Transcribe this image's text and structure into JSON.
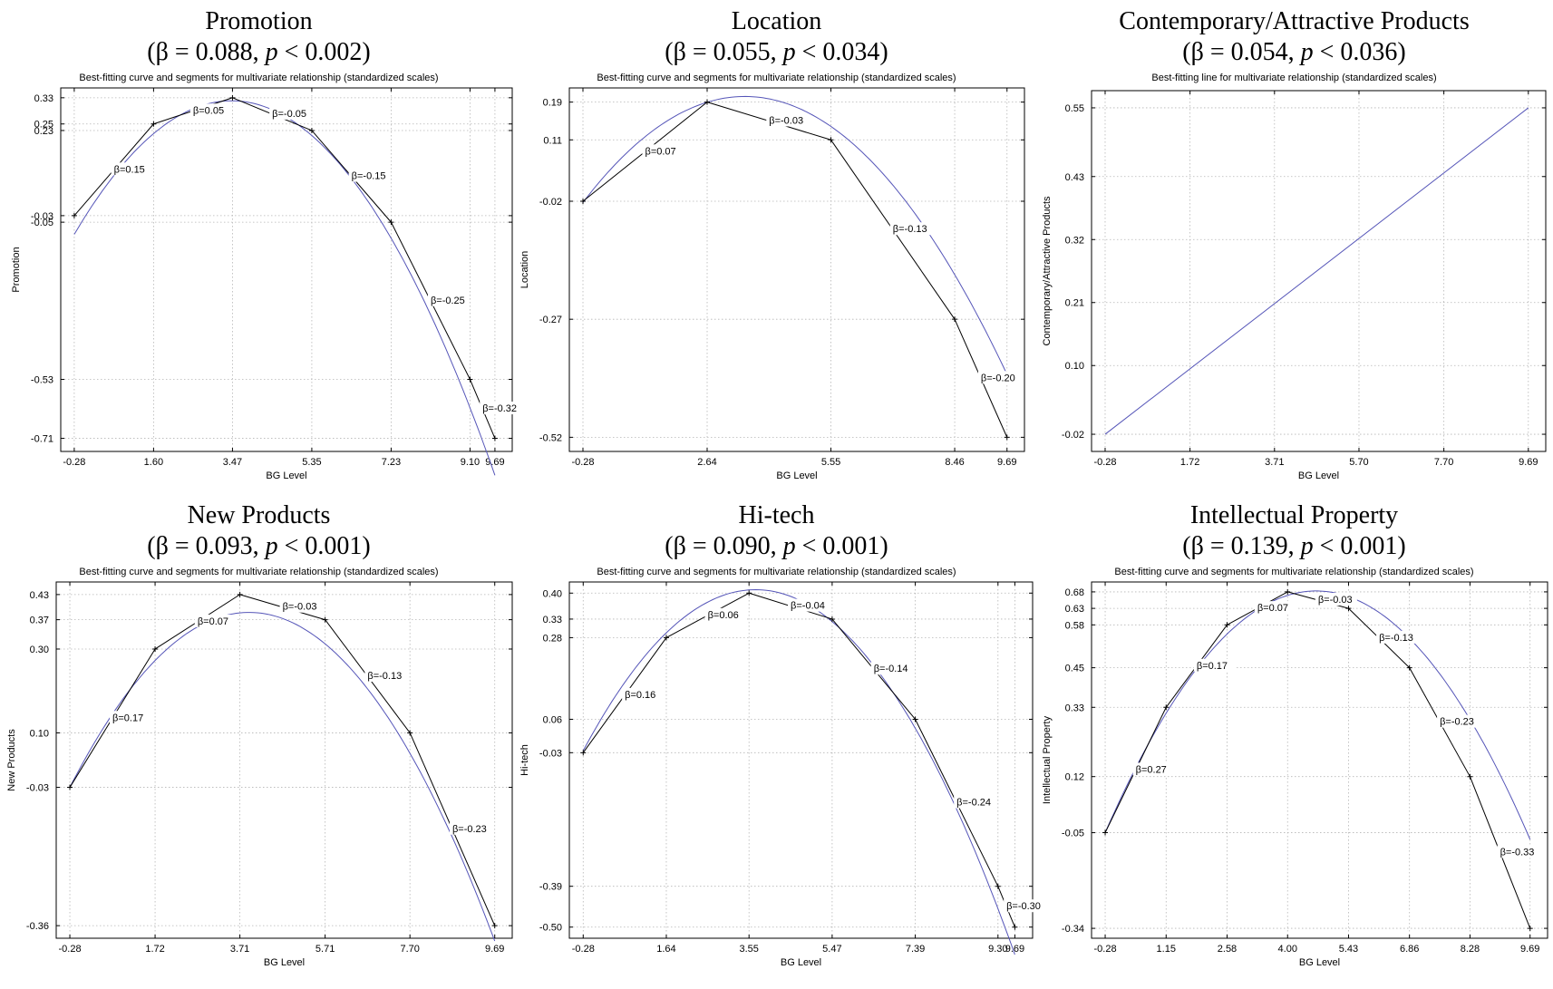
{
  "chart_data": [
    {
      "type": "line",
      "name": "Promotion",
      "title": "Promotion",
      "stat_beta": "β = 0.088, ",
      "stat_p": "p",
      "stat_rest": " < 0.002)",
      "subtitle": "Best-fitting curve and segments for multivariate relationship (standardized scales)",
      "xlabel": "BG Level",
      "ylabel": "Promotion",
      "xlim": [
        -0.6,
        10.1
      ],
      "ylim": [
        -0.75,
        0.36
      ],
      "xticks": [
        -0.28,
        1.6,
        3.47,
        5.35,
        7.23,
        9.1,
        9.69
      ],
      "xtick_labels": [
        "-0.28",
        "1.60",
        "3.47",
        "5.35",
        "7.23",
        "9.10",
        "9.69"
      ],
      "yticks": [
        0.33,
        0.25,
        0.23,
        -0.03,
        -0.05,
        -0.53,
        -0.71
      ],
      "ytick_labels": [
        "0.33",
        "0.25",
        "0.23",
        "-0.03",
        "-0.05",
        "-0.53",
        "-0.71"
      ],
      "curve": {
        "type": "quadratic",
        "a": -0.02935,
        "b": 0.2024,
        "c": -0.0282,
        "x_from": -0.28,
        "x_to": 9.69
      },
      "segments": {
        "x": [
          -0.28,
          1.6,
          3.47,
          5.35,
          7.23,
          9.1,
          9.69
        ],
        "y": [
          -0.03,
          0.25,
          0.33,
          0.23,
          -0.05,
          -0.53,
          -0.71
        ]
      },
      "segment_labels": [
        "β=0.15",
        "β=0.05",
        "β=-0.05",
        "β=-0.15",
        "β=-0.25",
        "β=-0.32"
      ]
    },
    {
      "type": "line",
      "name": "Location",
      "title": "Location",
      "stat_beta": "β = 0.055, ",
      "stat_p": "p",
      "stat_rest": " < 0.034)",
      "subtitle": "Best-fitting curve and segments for multivariate relationship (standardized scales)",
      "xlabel": "BG Level",
      "ylabel": "Location",
      "xlim": [
        -0.6,
        10.1
      ],
      "ylim": [
        -0.55,
        0.22
      ],
      "xticks": [
        -0.28,
        2.64,
        5.55,
        8.46,
        9.69
      ],
      "xtick_labels": [
        "-0.28",
        "2.64",
        "5.55",
        "8.46",
        "9.69"
      ],
      "yticks": [
        0.19,
        0.11,
        -0.02,
        -0.27,
        -0.52
      ],
      "ytick_labels": [
        "0.19",
        "0.11",
        "-0.02",
        "-0.27",
        "-0.52"
      ],
      "curve": {
        "type": "quadratic",
        "a": -0.0155,
        "b": 0.1093,
        "c": 0.0092,
        "x_from": -0.28,
        "x_to": 9.69
      },
      "segments": {
        "x": [
          -0.28,
          2.64,
          5.55,
          8.46,
          9.69
        ],
        "y": [
          -0.02,
          0.19,
          0.11,
          -0.27,
          -0.52
        ]
      },
      "segment_labels": [
        "β=0.07",
        "β=-0.03",
        "β=-0.13",
        "β=-0.20"
      ]
    },
    {
      "type": "line",
      "name": "Contemporary/Attractive Products",
      "title": "Contemporary/Attractive Products",
      "stat_beta": "β = 0.054, ",
      "stat_p": "p",
      "stat_rest": " < 0.036)",
      "subtitle": "Best-fitting line for multivariate relationship (standardized scales)",
      "xlabel": "BG Level",
      "ylabel": "Contemporary/Attractive Products",
      "xlim": [
        -0.6,
        10.1
      ],
      "ylim": [
        -0.05,
        0.58
      ],
      "xticks": [
        -0.28,
        1.72,
        3.71,
        5.7,
        7.7,
        9.69
      ],
      "xtick_labels": [
        "-0.28",
        "1.72",
        "3.71",
        "5.70",
        "7.70",
        "9.69"
      ],
      "yticks": [
        0.55,
        0.43,
        0.32,
        0.21,
        0.1,
        -0.02
      ],
      "ytick_labels": [
        "0.55",
        "0.43",
        "0.32",
        "0.21",
        "0.10",
        "-0.02"
      ],
      "line": {
        "x": [
          -0.28,
          9.69
        ],
        "y": [
          -0.02,
          0.55
        ]
      }
    },
    {
      "type": "line",
      "name": "New Products",
      "title": "New Products",
      "stat_beta": "β = 0.093, ",
      "stat_p": "p",
      "stat_rest": " < 0.001)",
      "subtitle": "Best-fitting curve and segments for multivariate relationship (standardized scales)",
      "xlabel": "BG Level",
      "ylabel": "New Products",
      "xlim": [
        -0.6,
        10.1
      ],
      "ylim": [
        -0.39,
        0.46
      ],
      "xticks": [
        -0.28,
        1.72,
        3.71,
        5.71,
        7.7,
        9.69
      ],
      "xtick_labels": [
        "-0.28",
        "1.72",
        "3.71",
        "5.71",
        "7.70",
        "9.69"
      ],
      "yticks": [
        0.43,
        0.37,
        0.3,
        0.1,
        -0.03,
        -0.36
      ],
      "ytick_labels": [
        "0.43",
        "0.37",
        "0.30",
        "0.10",
        "-0.03",
        "-0.36"
      ],
      "curve": {
        "type": "quadratic",
        "a": -0.0236,
        "b": 0.1853,
        "c": 0.0237,
        "x_from": -0.28,
        "x_to": 9.69
      },
      "segments": {
        "x": [
          -0.28,
          1.72,
          3.71,
          5.71,
          7.7,
          9.69
        ],
        "y": [
          -0.03,
          0.3,
          0.43,
          0.37,
          0.1,
          -0.36
        ]
      },
      "segment_labels": [
        "β=0.17",
        "β=0.07",
        "β=-0.03",
        "β=-0.13",
        "β=-0.23"
      ]
    },
    {
      "type": "line",
      "name": "Hi-tech",
      "title": "Hi-tech",
      "stat_beta": "β = 0.090, ",
      "stat_p": "p",
      "stat_rest": " < 0.001)",
      "subtitle": "Best-fitting curve and segments for multivariate relationship (standardized scales)",
      "xlabel": "BG Level",
      "ylabel": "Hi-tech",
      "xlim": [
        -0.6,
        10.1
      ],
      "ylim": [
        -0.53,
        0.43
      ],
      "xticks": [
        -0.28,
        1.64,
        3.55,
        5.47,
        7.39,
        9.3,
        9.69
      ],
      "xtick_labels": [
        "-0.28",
        "1.64",
        "3.55",
        "5.47",
        "7.39",
        "9.30",
        "9.69"
      ],
      "yticks": [
        0.4,
        0.33,
        0.28,
        0.06,
        -0.03,
        -0.39,
        -0.5
      ],
      "ytick_labels": [
        "0.40",
        "0.33",
        "0.28",
        "0.06",
        "-0.03",
        "-0.39",
        "-0.50"
      ],
      "curve": {
        "type": "quadratic",
        "a": -0.0274,
        "b": 0.2027,
        "c": 0.0343,
        "x_from": -0.28,
        "x_to": 9.69
      },
      "segments": {
        "x": [
          -0.28,
          1.64,
          3.55,
          5.47,
          7.39,
          9.3,
          9.69
        ],
        "y": [
          -0.03,
          0.28,
          0.4,
          0.33,
          0.06,
          -0.39,
          -0.5
        ]
      },
      "segment_labels": [
        "β=0.16",
        "β=0.06",
        "β=-0.04",
        "β=-0.14",
        "β=-0.24",
        "β=-0.30"
      ]
    },
    {
      "type": "line",
      "name": "Intellectual Property",
      "title": "Intellectual Property",
      "stat_beta": "β = 0.139, ",
      "stat_p": "p",
      "stat_rest": " < 0.001)",
      "subtitle": "Best-fitting curve and segments for multivariate relationship (standardized scales)",
      "xlabel": "BG Level",
      "ylabel": "Intellectual Property",
      "xlim": [
        -0.6,
        10.1
      ],
      "ylim": [
        -0.37,
        0.71
      ],
      "xticks": [
        -0.28,
        1.15,
        2.58,
        4.0,
        5.43,
        6.86,
        8.28,
        9.69
      ],
      "xtick_labels": [
        "-0.28",
        "1.15",
        "2.58",
        "4.00",
        "5.43",
        "6.86",
        "8.28",
        "9.69"
      ],
      "yticks": [
        0.68,
        0.63,
        0.58,
        0.45,
        0.33,
        0.12,
        -0.05,
        -0.34
      ],
      "ytick_labels": [
        "0.68",
        "0.63",
        "0.58",
        "0.45",
        "0.33",
        "0.12",
        "-0.05",
        "-0.34"
      ],
      "curve": {
        "type": "quadratic",
        "a": -0.0299,
        "b": 0.2793,
        "c": 0.0305,
        "x_from": -0.28,
        "x_to": 9.69
      },
      "segments": {
        "x": [
          -0.28,
          1.15,
          2.58,
          4.0,
          5.43,
          6.86,
          8.28,
          9.69
        ],
        "y": [
          -0.05,
          0.33,
          0.58,
          0.68,
          0.63,
          0.45,
          0.12,
          -0.34
        ]
      },
      "segment_labels": [
        "β=0.27",
        "β=0.17",
        "β=0.07",
        "β=-0.03",
        "β=-0.13",
        "β=-0.23",
        "β=-0.33"
      ]
    }
  ]
}
